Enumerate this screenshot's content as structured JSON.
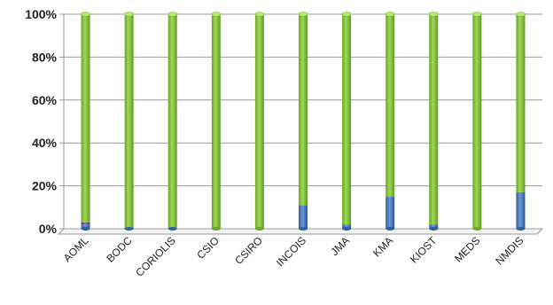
{
  "chart_data": {
    "type": "bar",
    "stacked": true,
    "percent": true,
    "categories": [
      "AOML",
      "BODC",
      "CORIOLIS",
      "CSIO",
      "CSIRO",
      "INCOIS",
      "JMA",
      "KMA",
      "KIOST",
      "MEDS",
      "NMDIS"
    ],
    "series": [
      {
        "color": "#4a7ebf",
        "values": [
          2,
          0.5,
          0.5,
          0,
          0,
          11,
          2,
          15,
          2,
          0,
          17
        ]
      },
      {
        "color": "#8b3f96",
        "values": [
          1,
          0,
          0,
          0,
          0,
          0,
          0,
          0,
          0,
          0,
          0
        ]
      },
      {
        "color": "#8cc63f",
        "values": [
          97,
          99.5,
          99.5,
          100,
          100,
          89,
          98,
          85,
          98,
          100,
          83
        ]
      }
    ],
    "ylim": [
      0,
      100
    ],
    "yticks": [
      "0%",
      "20%",
      "40%",
      "60%",
      "80%",
      "100%"
    ],
    "title": "",
    "xlabel": "",
    "ylabel": "",
    "legend": "none",
    "grid": true
  }
}
